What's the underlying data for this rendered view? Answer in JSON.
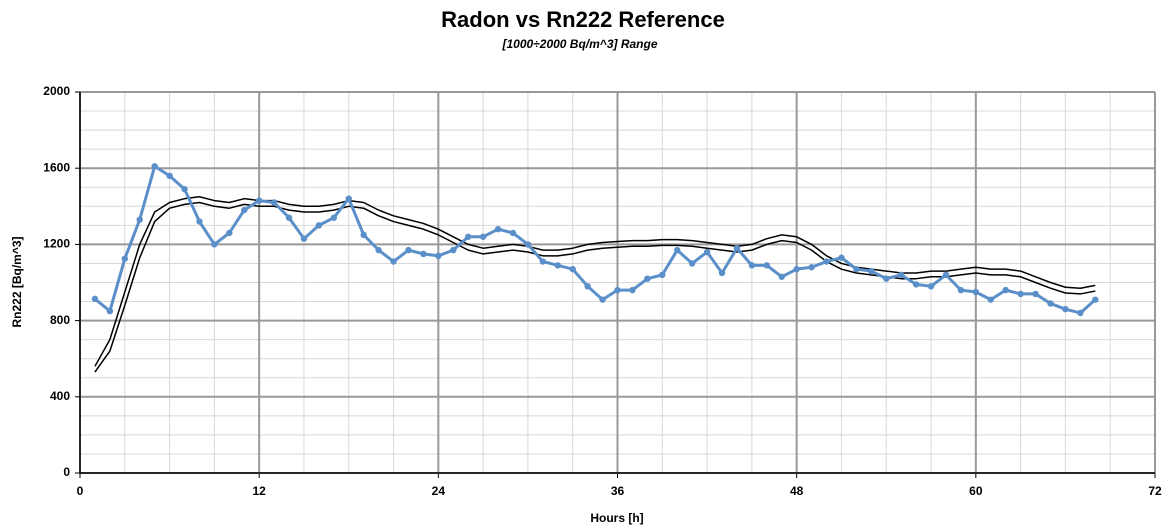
{
  "chart_data": {
    "type": "line",
    "title": "Radon vs Rn222 Reference",
    "subtitle": "[1000÷2000 Bq/m^3] Range",
    "x_label": "Hours [h]",
    "y_label": "Rn222 [Bq/m^3]",
    "x": [
      1,
      2,
      3,
      4,
      5,
      6,
      7,
      8,
      9,
      10,
      11,
      12,
      13,
      14,
      15,
      16,
      17,
      18,
      19,
      20,
      21,
      22,
      23,
      24,
      25,
      26,
      27,
      28,
      29,
      30,
      31,
      32,
      33,
      34,
      35,
      36,
      37,
      38,
      39,
      40,
      41,
      42,
      43,
      44,
      45,
      46,
      47,
      48,
      49,
      50,
      51,
      52,
      53,
      54,
      55,
      56,
      57,
      58,
      59,
      60,
      61,
      62,
      63,
      64,
      65,
      66,
      67,
      68
    ],
    "series": [
      {
        "color": "#5b8fc9",
        "markers": true,
        "values": [
          914,
          850,
          1125,
          1330,
          1610,
          1560,
          1490,
          1320,
          1200,
          1260,
          1380,
          1430,
          1420,
          1340,
          1230,
          1300,
          1340,
          1440,
          1250,
          1170,
          1110,
          1170,
          1150,
          1140,
          1170,
          1240,
          1240,
          1280,
          1260,
          1200,
          1110,
          1090,
          1070,
          980,
          910,
          960,
          960,
          1020,
          1040,
          1170,
          1100,
          1160,
          1050,
          1180,
          1090,
          1090,
          1030,
          1070,
          1080,
          1110,
          1130,
          1070,
          1060,
          1020,
          1040,
          990,
          980,
          1040,
          960,
          950,
          910,
          960,
          940,
          940,
          890,
          860,
          840,
          910
        ]
      },
      {
        "color": "#000000",
        "markers": false,
        "values": [
          560,
          700,
          950,
          1200,
          1370,
          1420,
          1440,
          1450,
          1430,
          1420,
          1440,
          1430,
          1430,
          1410,
          1400,
          1400,
          1410,
          1430,
          1420,
          1380,
          1350,
          1330,
          1310,
          1280,
          1240,
          1200,
          1180,
          1190,
          1200,
          1190,
          1170,
          1170,
          1180,
          1200,
          1210,
          1215,
          1220,
          1220,
          1225,
          1225,
          1220,
          1210,
          1200,
          1190,
          1200,
          1230,
          1250,
          1240,
          1200,
          1140,
          1100,
          1080,
          1070,
          1060,
          1050,
          1050,
          1060,
          1060,
          1070,
          1080,
          1070,
          1070,
          1060,
          1030,
          1000,
          975,
          970,
          985
        ]
      },
      {
        "color": "#000000",
        "markers": false,
        "values": [
          530,
          640,
          880,
          1130,
          1320,
          1390,
          1410,
          1420,
          1400,
          1390,
          1410,
          1400,
          1400,
          1380,
          1370,
          1370,
          1380,
          1400,
          1390,
          1350,
          1320,
          1300,
          1280,
          1250,
          1210,
          1170,
          1150,
          1160,
          1170,
          1160,
          1140,
          1140,
          1150,
          1170,
          1180,
          1185,
          1190,
          1190,
          1195,
          1195,
          1190,
          1180,
          1170,
          1160,
          1170,
          1200,
          1220,
          1210,
          1170,
          1110,
          1070,
          1050,
          1040,
          1030,
          1020,
          1020,
          1030,
          1030,
          1040,
          1050,
          1040,
          1040,
          1030,
          1000,
          970,
          945,
          940,
          955
        ]
      }
    ],
    "xlim": [
      0,
      72
    ],
    "xticks": [
      0,
      12,
      24,
      36,
      48,
      60,
      72
    ],
    "ylim": [
      0,
      2000
    ],
    "yticks": [
      0,
      400,
      800,
      1200,
      1600,
      2000
    ],
    "x_minor_step": 3,
    "y_minor_step": 100,
    "grid": true
  }
}
